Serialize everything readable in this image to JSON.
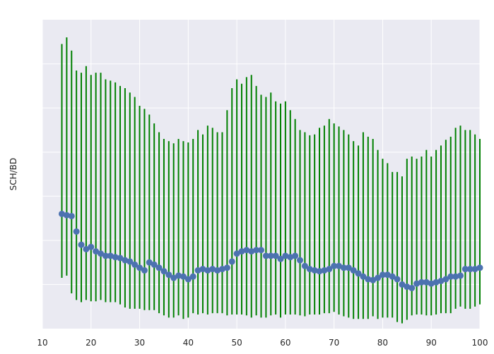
{
  "chart_data": {
    "type": "scatter",
    "title": "",
    "xlabel": "",
    "ylabel": "SCH/BD",
    "xlim": [
      10,
      100
    ],
    "ylim": [
      0,
      7
    ],
    "grid": true,
    "style": "seaborn-darkgrid",
    "xticks": [
      10,
      20,
      30,
      40,
      50,
      60,
      70,
      80,
      90,
      100
    ],
    "yticks": [
      1,
      2,
      3,
      4,
      5,
      6
    ],
    "ytick_labels_visible": false,
    "colors": {
      "background": "#eaeaf2",
      "grid": "#ffffff",
      "points": "#4c72b0",
      "errorbars": "#008000"
    },
    "x": [
      14,
      15,
      16,
      17,
      18,
      19,
      20,
      21,
      22,
      23,
      24,
      25,
      26,
      27,
      28,
      29,
      30,
      31,
      32,
      33,
      34,
      35,
      36,
      37,
      38,
      39,
      40,
      41,
      42,
      43,
      44,
      45,
      46,
      47,
      48,
      49,
      50,
      51,
      52,
      53,
      54,
      55,
      56,
      57,
      58,
      59,
      60,
      61,
      62,
      63,
      64,
      65,
      66,
      67,
      68,
      69,
      70,
      71,
      72,
      73,
      74,
      75,
      76,
      77,
      78,
      79,
      80,
      81,
      82,
      83,
      84,
      85,
      86,
      87,
      88,
      89,
      90,
      91,
      92,
      93,
      94,
      95,
      96,
      97,
      98,
      99,
      100
    ],
    "y": [
      2.6,
      2.57,
      2.55,
      2.2,
      1.9,
      1.8,
      1.85,
      1.75,
      1.7,
      1.65,
      1.65,
      1.62,
      1.6,
      1.55,
      1.52,
      1.45,
      1.38,
      1.32,
      1.5,
      1.45,
      1.38,
      1.3,
      1.22,
      1.15,
      1.2,
      1.18,
      1.12,
      1.18,
      1.32,
      1.35,
      1.32,
      1.35,
      1.32,
      1.35,
      1.38,
      1.52,
      1.7,
      1.75,
      1.78,
      1.75,
      1.78,
      1.78,
      1.65,
      1.65,
      1.65,
      1.58,
      1.65,
      1.62,
      1.65,
      1.55,
      1.42,
      1.35,
      1.32,
      1.3,
      1.32,
      1.35,
      1.42,
      1.42,
      1.38,
      1.38,
      1.32,
      1.25,
      1.18,
      1.12,
      1.1,
      1.15,
      1.22,
      1.22,
      1.18,
      1.12,
      1.0,
      0.95,
      0.92,
      1.02,
      1.05,
      1.05,
      1.02,
      1.05,
      1.08,
      1.12,
      1.18,
      1.18,
      1.2,
      1.35,
      1.35,
      1.35,
      1.38
    ],
    "y_low": [
      1.15,
      1.2,
      0.8,
      0.65,
      0.6,
      0.65,
      0.62,
      0.62,
      0.65,
      0.6,
      0.6,
      0.6,
      0.55,
      0.48,
      0.45,
      0.45,
      0.45,
      0.42,
      0.42,
      0.42,
      0.35,
      0.3,
      0.25,
      0.25,
      0.3,
      0.22,
      0.25,
      0.35,
      0.32,
      0.35,
      0.32,
      0.35,
      0.35,
      0.35,
      0.3,
      0.32,
      0.32,
      0.32,
      0.3,
      0.25,
      0.3,
      0.25,
      0.25,
      0.3,
      0.32,
      0.25,
      0.32,
      0.32,
      0.32,
      0.3,
      0.28,
      0.32,
      0.32,
      0.32,
      0.35,
      0.35,
      0.38,
      0.32,
      0.28,
      0.25,
      0.22,
      0.22,
      0.22,
      0.22,
      0.28,
      0.22,
      0.25,
      0.25,
      0.25,
      0.15,
      0.12,
      0.2,
      0.3,
      0.32,
      0.32,
      0.3,
      0.3,
      0.32,
      0.35,
      0.35,
      0.35,
      0.45,
      0.5,
      0.45,
      0.45,
      0.5,
      0.55
    ],
    "y_high": [
      6.45,
      6.6,
      6.3,
      5.85,
      5.8,
      5.95,
      5.75,
      5.8,
      5.8,
      5.65,
      5.62,
      5.58,
      5.5,
      5.45,
      5.35,
      5.25,
      5.05,
      4.98,
      4.85,
      4.65,
      4.45,
      4.3,
      4.25,
      4.2,
      4.3,
      4.25,
      4.22,
      4.3,
      4.5,
      4.4,
      4.6,
      4.55,
      4.45,
      4.45,
      4.95,
      5.45,
      5.65,
      5.55,
      5.7,
      5.75,
      5.5,
      5.3,
      5.25,
      5.35,
      5.15,
      5.1,
      5.15,
      4.95,
      4.75,
      4.5,
      4.45,
      4.38,
      4.4,
      4.55,
      4.6,
      4.75,
      4.65,
      4.58,
      4.5,
      4.4,
      4.25,
      4.15,
      4.45,
      4.35,
      4.3,
      4.05,
      3.85,
      3.75,
      3.55,
      3.55,
      3.45,
      3.85,
      3.9,
      3.85,
      3.9,
      4.05,
      3.9,
      4.05,
      4.15,
      4.28,
      4.35,
      4.55,
      4.6,
      4.5,
      4.5,
      4.4,
      4.3
    ]
  }
}
